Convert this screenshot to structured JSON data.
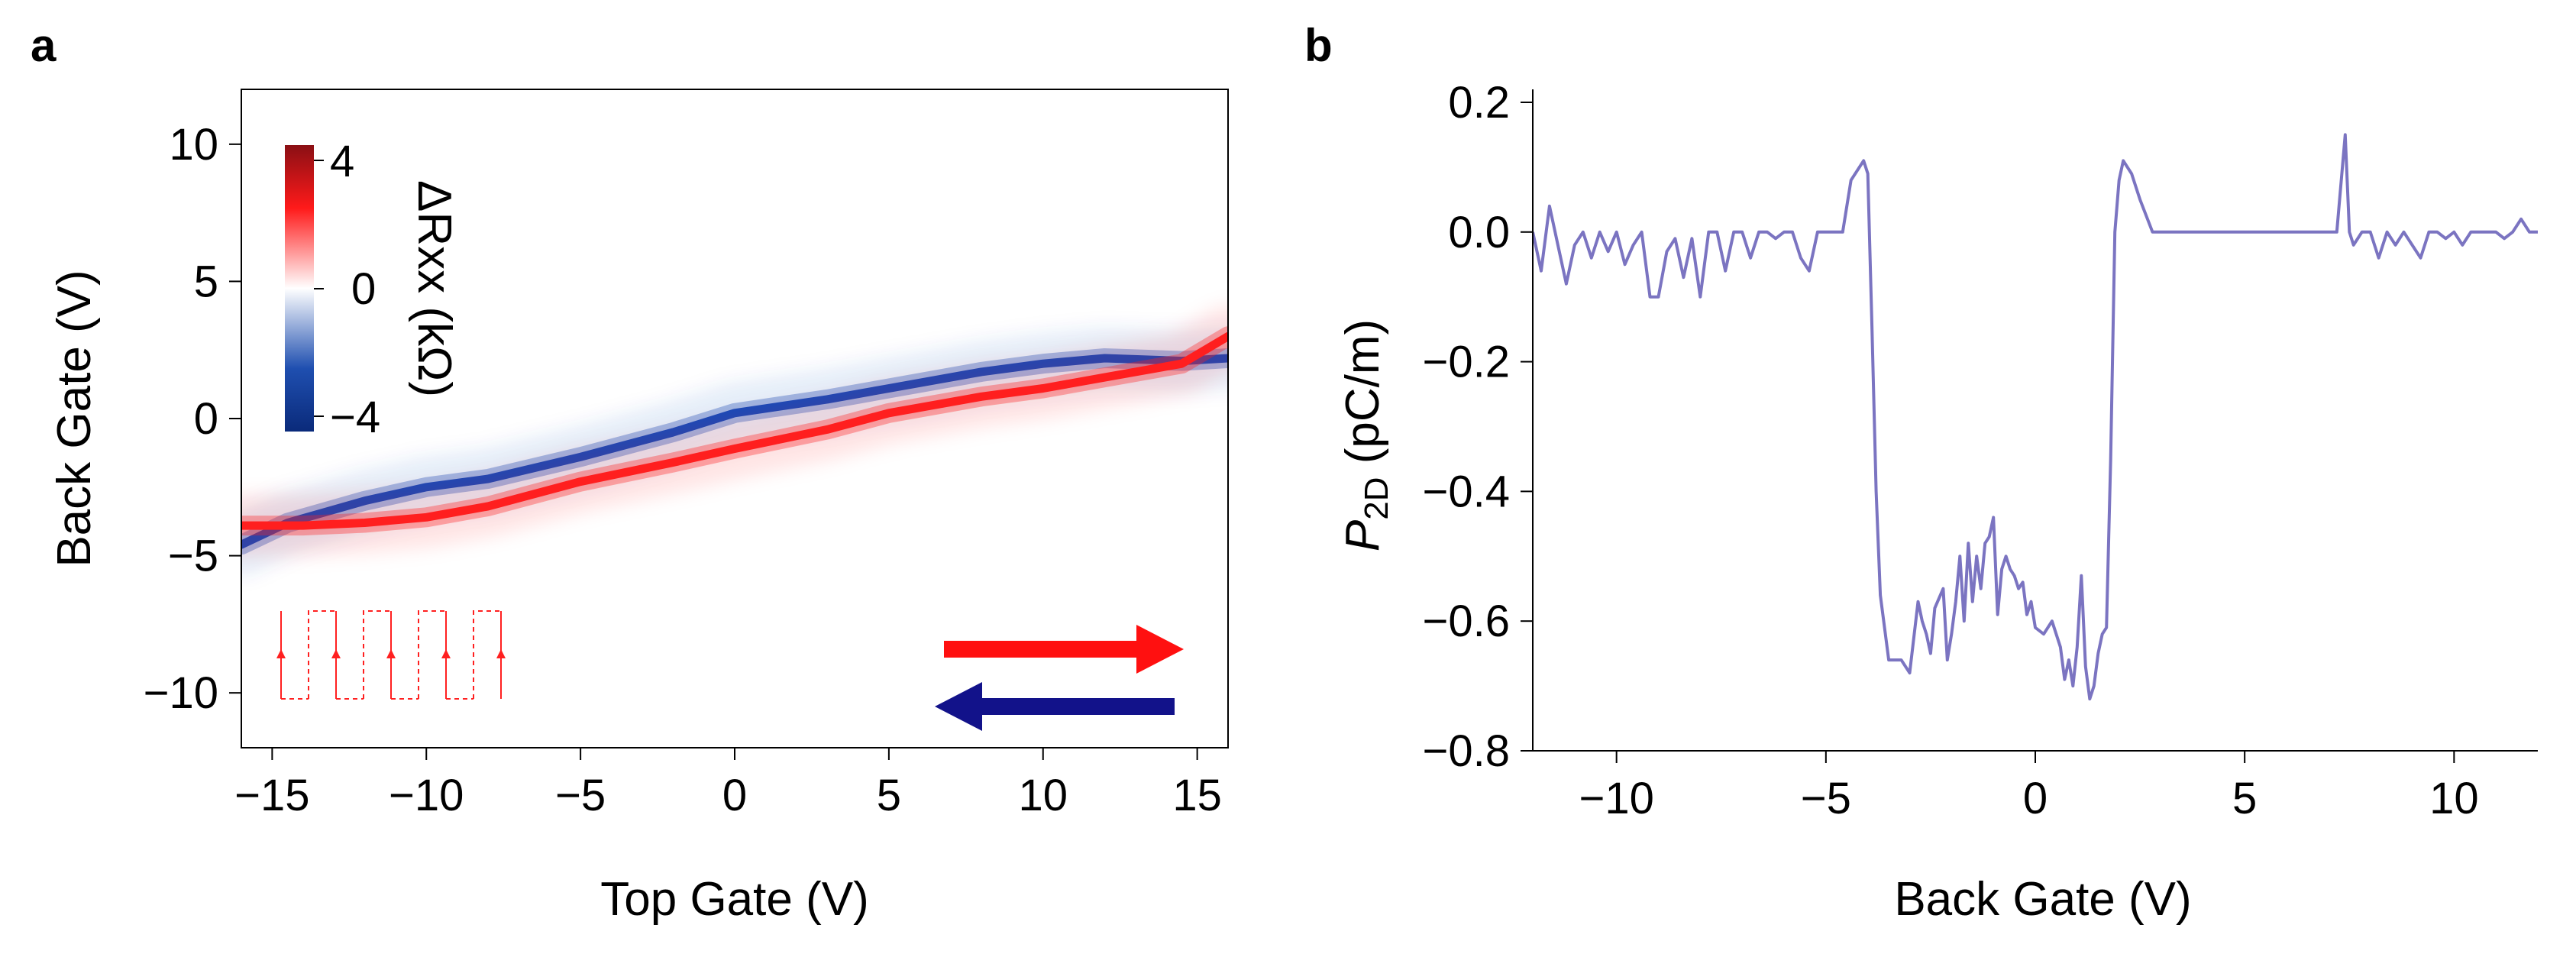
{
  "chart_data": [
    {
      "panel": "a",
      "type": "heatmap",
      "xlabel": "Top Gate (V)",
      "ylabel": "Back Gate (V)",
      "xlim": [
        -16,
        16
      ],
      "ylim": [
        -12,
        12
      ],
      "x_ticks": [
        -15,
        -10,
        -5,
        0,
        5,
        10,
        15
      ],
      "y_ticks": [
        -10,
        -5,
        0,
        5,
        10
      ],
      "colorbar": {
        "label": "ΔRxx (kΩ)",
        "range": [
          -4.5,
          4.5
        ],
        "ticks": [
          4,
          0,
          -4
        ],
        "tick_labels": [
          "4",
          "0",
          "−4"
        ],
        "colors": [
          "#0a2a7a",
          "#1f4fb0",
          "#ffffff",
          "#ff1a1a",
          "#8a0f14"
        ]
      },
      "features": [
        {
          "name": "blue-band",
          "sign": "negative",
          "color": "#1a4ab8",
          "points": [
            [
              -16,
              -4.6
            ],
            [
              -14.5,
              -3.8
            ],
            [
              -12,
              -3.0
            ],
            [
              -10,
              -2.5
            ],
            [
              -8,
              -2.2
            ],
            [
              -5,
              -1.4
            ],
            [
              -2,
              -0.5
            ],
            [
              0,
              0.2
            ],
            [
              3,
              0.7
            ],
            [
              5,
              1.1
            ],
            [
              8,
              1.7
            ],
            [
              10,
              2.0
            ],
            [
              12,
              2.2
            ],
            [
              14.5,
              2.1
            ],
            [
              16,
              2.2
            ]
          ]
        },
        {
          "name": "red-band",
          "sign": "positive",
          "color": "#ff1f1f",
          "points": [
            [
              -16,
              -3.9
            ],
            [
              -14,
              -3.9
            ],
            [
              -12,
              -3.8
            ],
            [
              -10,
              -3.6
            ],
            [
              -8,
              -3.2
            ],
            [
              -5,
              -2.3
            ],
            [
              -2,
              -1.6
            ],
            [
              0,
              -1.1
            ],
            [
              3,
              -0.4
            ],
            [
              5,
              0.2
            ],
            [
              8,
              0.8
            ],
            [
              10,
              1.1
            ],
            [
              12,
              1.5
            ],
            [
              14.5,
              2.0
            ],
            [
              16,
              3.0
            ]
          ]
        }
      ],
      "arrows": [
        {
          "direction": "right",
          "color": "#ff1010"
        },
        {
          "direction": "left",
          "color": "#12128a"
        }
      ]
    },
    {
      "panel": "b",
      "type": "line",
      "xlabel": "Back Gate (V)",
      "ylabel": "P2D (pC/m)",
      "xlim": [
        -12,
        12
      ],
      "ylim": [
        -0.8,
        0.22
      ],
      "x_ticks": [
        -10,
        -5,
        0,
        5,
        10
      ],
      "y_ticks": [
        0.2,
        0.0,
        -0.2,
        -0.4,
        -0.6,
        -0.8
      ],
      "color": "#7b74c1",
      "series": [
        {
          "name": "P2D",
          "points": [
            [
              -12.0,
              0.0
            ],
            [
              -11.8,
              -0.06
            ],
            [
              -11.6,
              0.04
            ],
            [
              -11.4,
              -0.02
            ],
            [
              -11.2,
              -0.08
            ],
            [
              -11.0,
              -0.02
            ],
            [
              -10.8,
              0.0
            ],
            [
              -10.6,
              -0.04
            ],
            [
              -10.4,
              0.0
            ],
            [
              -10.2,
              -0.03
            ],
            [
              -10.0,
              0.0
            ],
            [
              -9.8,
              -0.05
            ],
            [
              -9.6,
              -0.02
            ],
            [
              -9.4,
              0.0
            ],
            [
              -9.2,
              -0.1
            ],
            [
              -9.0,
              -0.1
            ],
            [
              -8.8,
              -0.03
            ],
            [
              -8.6,
              -0.01
            ],
            [
              -8.4,
              -0.07
            ],
            [
              -8.2,
              -0.01
            ],
            [
              -8.0,
              -0.1
            ],
            [
              -7.8,
              0.0
            ],
            [
              -7.6,
              0.0
            ],
            [
              -7.4,
              -0.06
            ],
            [
              -7.2,
              0.0
            ],
            [
              -7.0,
              0.0
            ],
            [
              -6.8,
              -0.04
            ],
            [
              -6.6,
              0.0
            ],
            [
              -6.4,
              0.0
            ],
            [
              -6.2,
              -0.01
            ],
            [
              -6.0,
              0.0
            ],
            [
              -5.8,
              0.0
            ],
            [
              -5.6,
              -0.04
            ],
            [
              -5.4,
              -0.06
            ],
            [
              -5.2,
              0.0
            ],
            [
              -5.0,
              0.0
            ],
            [
              -4.8,
              0.0
            ],
            [
              -4.6,
              0.0
            ],
            [
              -4.4,
              0.08
            ],
            [
              -4.2,
              0.1
            ],
            [
              -4.1,
              0.11
            ],
            [
              -4.0,
              0.09
            ],
            [
              -3.9,
              -0.15
            ],
            [
              -3.8,
              -0.4
            ],
            [
              -3.7,
              -0.56
            ],
            [
              -3.6,
              -0.61
            ],
            [
              -3.5,
              -0.66
            ],
            [
              -3.2,
              -0.66
            ],
            [
              -3.0,
              -0.68
            ],
            [
              -2.8,
              -0.57
            ],
            [
              -2.7,
              -0.6
            ],
            [
              -2.6,
              -0.62
            ],
            [
              -2.5,
              -0.65
            ],
            [
              -2.4,
              -0.58
            ],
            [
              -2.2,
              -0.55
            ],
            [
              -2.1,
              -0.66
            ],
            [
              -2.0,
              -0.62
            ],
            [
              -1.9,
              -0.57
            ],
            [
              -1.8,
              -0.5
            ],
            [
              -1.7,
              -0.6
            ],
            [
              -1.6,
              -0.48
            ],
            [
              -1.5,
              -0.57
            ],
            [
              -1.4,
              -0.5
            ],
            [
              -1.3,
              -0.55
            ],
            [
              -1.2,
              -0.48
            ],
            [
              -1.1,
              -0.47
            ],
            [
              -1.0,
              -0.44
            ],
            [
              -0.9,
              -0.59
            ],
            [
              -0.8,
              -0.52
            ],
            [
              -0.7,
              -0.5
            ],
            [
              -0.6,
              -0.52
            ],
            [
              -0.5,
              -0.53
            ],
            [
              -0.4,
              -0.55
            ],
            [
              -0.3,
              -0.54
            ],
            [
              -0.2,
              -0.59
            ],
            [
              -0.1,
              -0.57
            ],
            [
              0.0,
              -0.61
            ],
            [
              0.2,
              -0.62
            ],
            [
              0.4,
              -0.6
            ],
            [
              0.6,
              -0.64
            ],
            [
              0.7,
              -0.69
            ],
            [
              0.8,
              -0.66
            ],
            [
              0.9,
              -0.7
            ],
            [
              1.0,
              -0.64
            ],
            [
              1.1,
              -0.53
            ],
            [
              1.2,
              -0.67
            ],
            [
              1.3,
              -0.72
            ],
            [
              1.4,
              -0.7
            ],
            [
              1.5,
              -0.65
            ],
            [
              1.6,
              -0.62
            ],
            [
              1.7,
              -0.61
            ],
            [
              1.8,
              -0.35
            ],
            [
              1.9,
              0.0
            ],
            [
              2.0,
              0.08
            ],
            [
              2.1,
              0.11
            ],
            [
              2.3,
              0.09
            ],
            [
              2.5,
              0.05
            ],
            [
              2.8,
              0.0
            ],
            [
              3.0,
              0.0
            ],
            [
              7.2,
              0.0
            ],
            [
              7.4,
              0.15
            ],
            [
              7.5,
              0.0
            ],
            [
              7.6,
              -0.02
            ],
            [
              7.8,
              0.0
            ],
            [
              8.0,
              0.0
            ],
            [
              8.2,
              -0.04
            ],
            [
              8.4,
              0.0
            ],
            [
              8.6,
              -0.02
            ],
            [
              8.8,
              0.0
            ],
            [
              9.0,
              -0.02
            ],
            [
              9.2,
              -0.04
            ],
            [
              9.4,
              0.0
            ],
            [
              9.6,
              0.0
            ],
            [
              9.8,
              -0.01
            ],
            [
              10.0,
              0.0
            ],
            [
              10.2,
              -0.02
            ],
            [
              10.4,
              0.0
            ],
            [
              11.0,
              0.0
            ],
            [
              11.2,
              -0.01
            ],
            [
              11.4,
              0.0
            ],
            [
              11.6,
              0.02
            ],
            [
              11.8,
              0.0
            ],
            [
              12.0,
              0.0
            ]
          ]
        }
      ]
    }
  ]
}
